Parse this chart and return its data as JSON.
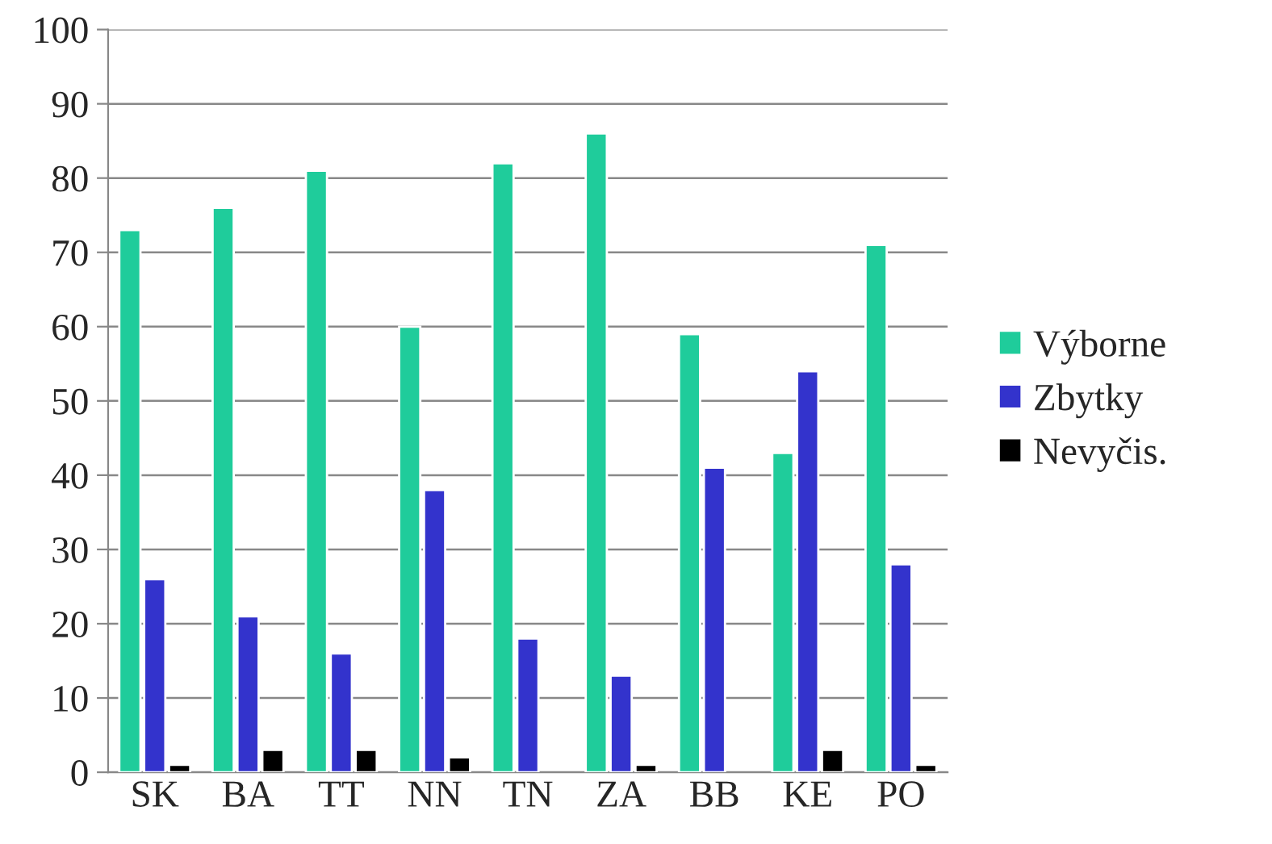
{
  "chart_data": {
    "type": "bar",
    "categories": [
      "SK",
      "BA",
      "TT",
      "NN",
      "TN",
      "ZA",
      "BB",
      "KE",
      "PO"
    ],
    "series": [
      {
        "name": "Výborne",
        "color": "#1fcc9b",
        "values": [
          73,
          76,
          81,
          60,
          82,
          86,
          59,
          43,
          71
        ]
      },
      {
        "name": "Zbytky",
        "color": "#3333cc",
        "values": [
          26,
          21,
          16,
          38,
          18,
          13,
          41,
          54,
          28
        ]
      },
      {
        "name": "Nevyčis.",
        "color": "#000000",
        "values": [
          1,
          3,
          3,
          2,
          null,
          1,
          null,
          3,
          1
        ]
      }
    ],
    "ylim": [
      0,
      100
    ],
    "yticks": [
      0,
      10,
      20,
      30,
      40,
      50,
      60,
      70,
      80,
      90,
      100
    ],
    "grid": "y",
    "legend": "right"
  }
}
